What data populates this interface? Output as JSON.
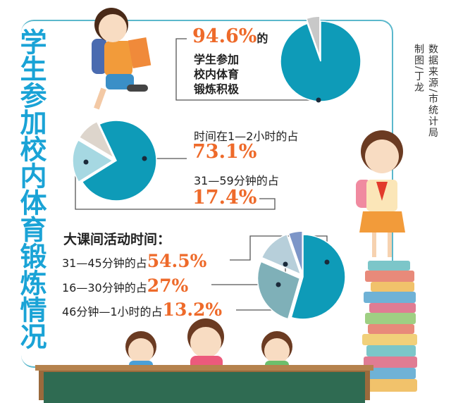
{
  "title": "学生参加校内体育锻炼情况",
  "source": {
    "data": "数据来源/市统计局",
    "author": "制图/丁龙"
  },
  "section1": {
    "value": "94.6%",
    "suffix": "的",
    "lines": [
      "学生参加",
      "校内体育",
      "锻炼积极"
    ]
  },
  "section2": {
    "label1": "时间在1—2小时的占",
    "value1": "73.1%",
    "label2": "31—59分钟的占",
    "value2": "17.4%"
  },
  "section3": {
    "heading": "大课间活动时间：",
    "rows": [
      {
        "label": "31—45分钟的占",
        "value": "54.5%"
      },
      {
        "label": "16—30分钟的占",
        "value": "27%"
      },
      {
        "label": "46分钟—1小时的占",
        "value": "13.2%"
      }
    ]
  },
  "colors": {
    "accent": "#0e9bb8",
    "number": "#ee6a2a",
    "title": "#1aa3d6"
  },
  "chart_data": [
    {
      "type": "pie",
      "values": [
        94.6,
        5.4
      ],
      "colors": [
        "#0e9bb8",
        "#c8c8c8"
      ]
    },
    {
      "type": "pie",
      "values": [
        73.1,
        17.4,
        9.5
      ],
      "colors": [
        "#0e9bb8",
        "#a6d8e2",
        "#ddd5cc"
      ]
    },
    {
      "type": "pie",
      "values": [
        54.5,
        27,
        13.2,
        5.3
      ],
      "colors": [
        "#0e9bb8",
        "#7fb0b8",
        "#b7cfda",
        "#7d96c8"
      ]
    }
  ]
}
